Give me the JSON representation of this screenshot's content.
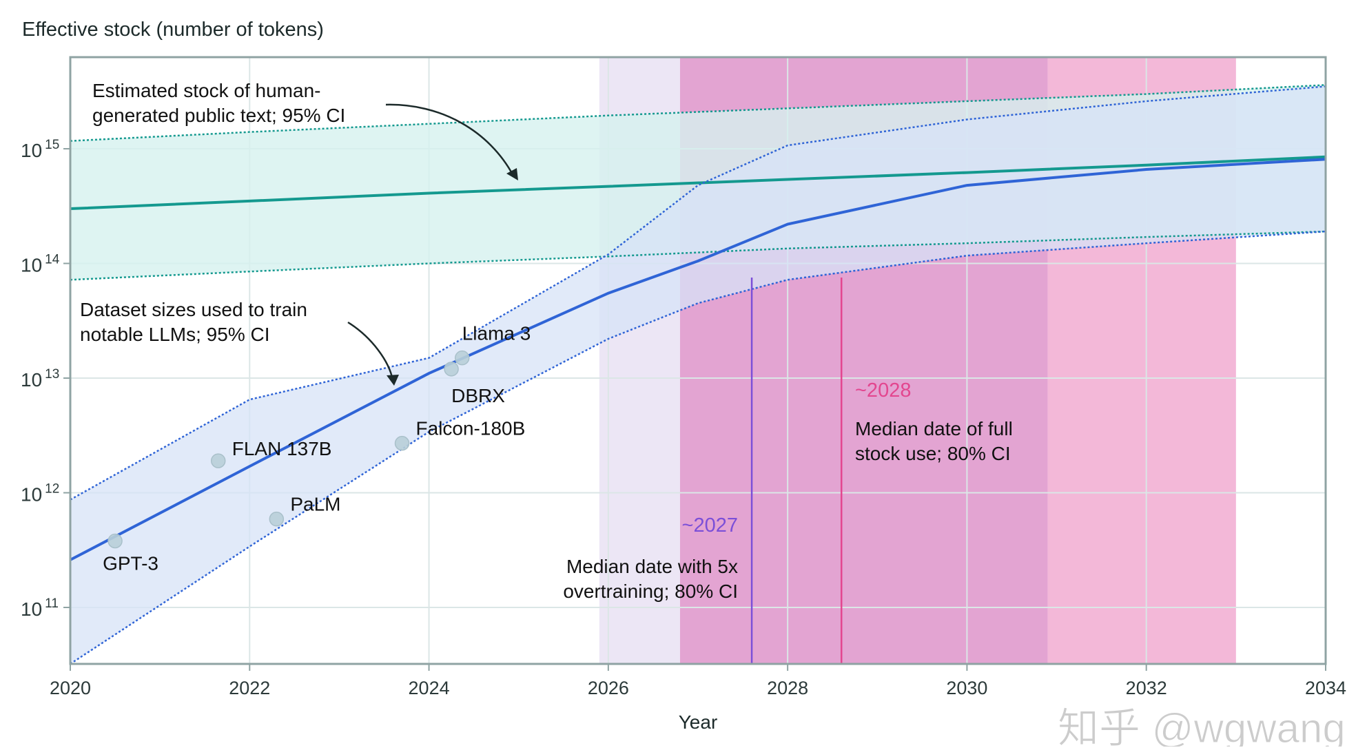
{
  "chart_data": {
    "type": "line",
    "title": "Effective stock (number of tokens)",
    "xlabel": "Year",
    "ylabel": "",
    "yscale": "log",
    "xlim": [
      2020,
      2034
    ],
    "ylim": [
      30000000000.0,
      6000000000000000.0
    ],
    "grid": true,
    "x_ticks": [
      "2020",
      "2022",
      "2024",
      "2026",
      "2028",
      "2030",
      "2032",
      "2034"
    ],
    "y_ticks": [
      {
        "base": "10",
        "exp": "11",
        "value": 100000000000.0
      },
      {
        "base": "10",
        "exp": "12",
        "value": 1000000000000.0
      },
      {
        "base": "10",
        "exp": "13",
        "value": 10000000000000.0
      },
      {
        "base": "10",
        "exp": "14",
        "value": 100000000000000.0
      },
      {
        "base": "10",
        "exp": "15",
        "value": 1000000000000000.0
      }
    ],
    "colors": {
      "stock": "#14998f",
      "stock_band": "#d6f1ef",
      "dataset": "#2f64d6",
      "dataset_band": "#d7e3f7",
      "lavender": "#ece6f5",
      "pink_dark": "#e3a4d2",
      "pink_light": "#f3b8d8",
      "median_5x": "#7b4fd8",
      "median_full": "#e3468f",
      "point": "#b9cfd8"
    },
    "series": [
      {
        "id": "stock",
        "x": [
          2020,
          2022,
          2024,
          2026,
          2028,
          2030,
          2032,
          2034
        ],
        "y": [
          300000000000000.0,
          350000000000000.0,
          410000000000000.0,
          470000000000000.0,
          540000000000000.0,
          620000000000000.0,
          720000000000000.0,
          850000000000000.0
        ],
        "ci_upper": [
          1170000000000000.0,
          1400000000000000.0,
          1650000000000000.0,
          1950000000000000.0,
          2250000000000000.0,
          2600000000000000.0,
          3000000000000000.0,
          3600000000000000.0
        ],
        "ci_lower": [
          72000000000000.0,
          85000000000000.0,
          100000000000000.0,
          115000000000000.0,
          135000000000000.0,
          150000000000000.0,
          170000000000000.0,
          190000000000000.0
        ]
      },
      {
        "id": "dataset",
        "x": [
          2020,
          2022,
          2024,
          2026,
          2027,
          2028,
          2030,
          2032,
          2034
        ],
        "y": [
          260000000000.0,
          1700000000000.0,
          11000000000000.0,
          55000000000000.0,
          105000000000000.0,
          220000000000000.0,
          480000000000000.0,
          660000000000000.0,
          810000000000000.0
        ],
        "ci_upper": [
          870000000000.0,
          6500000000000.0,
          15000000000000.0,
          120000000000000.0,
          480000000000000.0,
          1070000000000000.0,
          1800000000000000.0,
          2600000000000000.0,
          3500000000000000.0
        ],
        "ci_lower": [
          32000000000.0,
          340000000000.0,
          3400000000000.0,
          22000000000000.0,
          45000000000000.0,
          72000000000000.0,
          117000000000000.0,
          150000000000000.0,
          190000000000000.0
        ]
      }
    ],
    "points": [
      {
        "label": "GPT-3",
        "x": 2020.5,
        "y": 380000000000.0
      },
      {
        "label": "FLAN 137B",
        "x": 2021.65,
        "y": 1900000000000.0
      },
      {
        "label": "PaLM",
        "x": 2022.3,
        "y": 590000000000.0
      },
      {
        "label": "Falcon-180B",
        "x": 2023.7,
        "y": 2700000000000.0
      },
      {
        "label": "DBRX",
        "x": 2024.25,
        "y": 12000000000000.0
      },
      {
        "label": "Llama 3",
        "x": 2024.37,
        "y": 15000000000000.0
      }
    ],
    "regions": [
      {
        "id": "lavender",
        "from": 2025.9,
        "to": 2026.8
      },
      {
        "id": "pink_dark",
        "from": 2026.8,
        "to": 2030.9
      },
      {
        "id": "pink_light",
        "from": 2030.9,
        "to": 2033.0
      }
    ],
    "vlines": [
      {
        "id": "median_5x",
        "x": 2027.6,
        "label": "~2027"
      },
      {
        "id": "median_full",
        "x": 2028.6,
        "label": "~2028"
      }
    ],
    "annotations": {
      "stock": [
        "Estimated stock of human-",
        "generated public text; 95% CI"
      ],
      "dataset": [
        "Dataset sizes used to train",
        "notable LLMs; 95% CI"
      ],
      "median_5x": [
        "Median date with 5x",
        "overtraining; 80% CI"
      ],
      "median_full": [
        "Median date of full",
        "stock use; 80% CI"
      ]
    }
  },
  "watermark": "知乎 @wgwang"
}
